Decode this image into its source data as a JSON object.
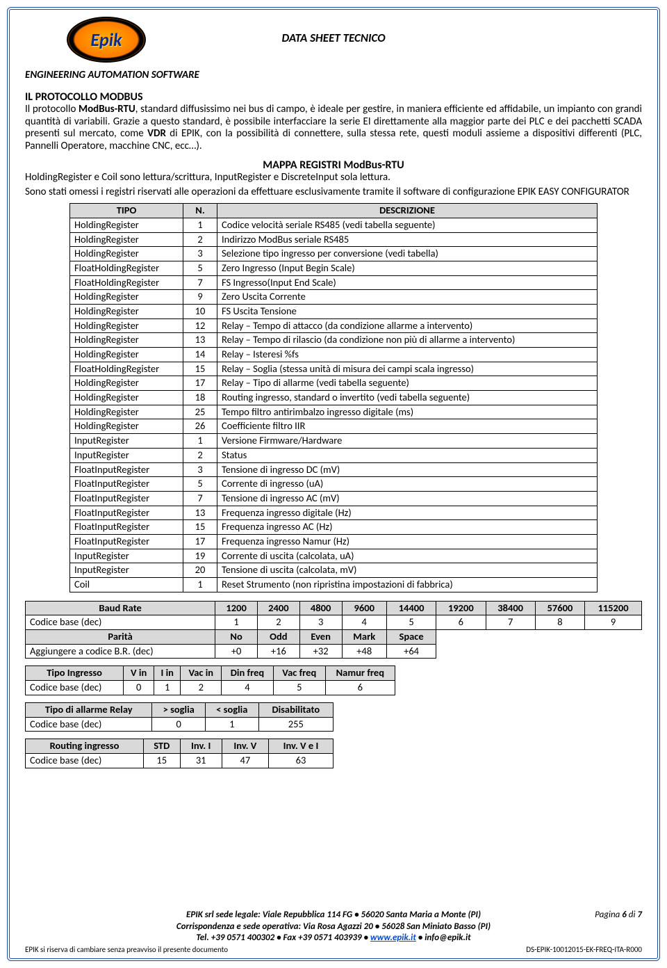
{
  "header": {
    "ds_title": "DATA SHEET TECNICO",
    "subtitle": "ENGINEERING AUTOMATION SOFTWARE",
    "logo_text": "Epik"
  },
  "section": {
    "title": "IL PROTOCOLLO MODBUS",
    "p1a": "Il protocollo ",
    "p1b": "ModBus-RTU",
    "p1c": ", standard diffusissimo nei bus di campo, è ideale per gestire, in maniera efficiente ed affidabile, un impianto con grandi quantità di variabili. Grazie a questo standard, è possibile interfacciare la serie EI direttamente alla maggior parte dei PLC e dei pacchetti SCADA presenti sul mercato, come ",
    "p1d": "VDR",
    "p1e": " di EPIK, con la possibilità di connettere, sulla stessa rete, questi moduli assieme a dispositivi differenti (PLC, Pannelli Operatore, macchine CNC, ecc…).",
    "map_title": "MAPPA REGISTRI ModBus-RTU",
    "p2": "HoldingRegister e Coil sono lettura/scrittura, InputRegister e DiscreteInput sola lettura.",
    "p3": "Sono stati omessi i registri riservati alle operazioni da effettuare esclusivamente tramite il software di configurazione EPIK EASY CONFIGURATOR"
  },
  "reg_table": {
    "headers": [
      "TIPO",
      "N.",
      "DESCRIZIONE"
    ],
    "rows": [
      [
        "HoldingRegister",
        "1",
        "Codice velocità seriale RS485 (vedi tabella seguente)"
      ],
      [
        "HoldingRegister",
        "2",
        "Indirizzo ModBus seriale RS485"
      ],
      [
        "HoldingRegister",
        "3",
        "Selezione tipo ingresso per conversione (vedi tabella)"
      ],
      [
        "FloatHoldingRegister",
        "5",
        "Zero Ingresso (Input Begin Scale)"
      ],
      [
        "FloatHoldingRegister",
        "7",
        "FS  Ingresso(Input End Scale)"
      ],
      [
        "HoldingRegister",
        "9",
        "Zero Uscita Corrente"
      ],
      [
        "HoldingRegister",
        "10",
        "FS Uscita Tensione"
      ],
      [
        "HoldingRegister",
        "12",
        "Relay – Tempo di attacco (da condizione allarme a intervento)"
      ],
      [
        "HoldingRegister",
        "13",
        "Relay – Tempo di rilascio (da condizione non più di allarme a intervento)"
      ],
      [
        "HoldingRegister",
        "14",
        "Relay – Isteresi %fs"
      ],
      [
        "FloatHoldingRegister",
        "15",
        "Relay – Soglia (stessa unità di misura dei campi scala ingresso)"
      ],
      [
        "HoldingRegister",
        "17",
        "Relay – Tipo di allarme (vedi tabella seguente)"
      ],
      [
        "HoldingRegister",
        "18",
        "Routing ingresso, standard o invertito (vedi tabella seguente)"
      ],
      [
        "HoldingRegister",
        "25",
        "Tempo filtro antirimbalzo ingresso digitale (ms)"
      ],
      [
        "HoldingRegister",
        "26",
        "Coefficiente filtro IIR"
      ],
      [
        "InputRegister",
        "1",
        "Versione Firmware/Hardware"
      ],
      [
        "InputRegister",
        "2",
        "Status"
      ],
      [
        "FloatInputRegister",
        "3",
        "Tensione di ingresso DC (mV)"
      ],
      [
        "FloatInputRegister",
        "5",
        "Corrente di ingresso (uA)"
      ],
      [
        "FloatInputRegister",
        "7",
        "Tensione di ingresso AC (mV)"
      ],
      [
        "FloatInputRegister",
        "13",
        "Frequenza ingresso digitale (Hz)"
      ],
      [
        "FloatInputRegister",
        "15",
        "Frequenza ingresso AC (Hz)"
      ],
      [
        "FloatInputRegister",
        "17",
        "Frequenza ingresso Namur (Hz)"
      ],
      [
        "InputRegister",
        "19",
        "Corrente di uscita (calcolata, uA)"
      ],
      [
        "InputRegister",
        "20",
        "Tensione di uscita (calcolata, mV)"
      ],
      [
        "Coil",
        "1",
        "Reset Strumento (non ripristina impostazioni di fabbrica)"
      ]
    ]
  },
  "baud_table": {
    "h": [
      "Baud Rate",
      "1200",
      "2400",
      "4800",
      "9600",
      "14400",
      "19200",
      "38400",
      "57600",
      "115200"
    ],
    "r1": [
      "Codice base (dec)",
      "1",
      "2",
      "3",
      "4",
      "5",
      "6",
      "7",
      "8",
      "9"
    ],
    "h2": [
      "Parità",
      "No",
      "Odd",
      "Even",
      "Mark",
      "Space"
    ],
    "r2": [
      "Aggiungere a codice B.R. (dec)",
      "+0",
      "+16",
      "+32",
      "+48",
      "+64"
    ]
  },
  "tipo_table": {
    "h": [
      "Tipo Ingresso",
      "V in",
      "I in",
      "Vac in",
      "Din freq",
      "Vac freq",
      "Namur freq"
    ],
    "r": [
      "Codice base (dec)",
      "0",
      "1",
      "2",
      "4",
      "5",
      "6"
    ]
  },
  "alarm_table": {
    "h": [
      "Tipo di allarme Relay",
      "> soglia",
      "< soglia",
      "Disabilitato"
    ],
    "r": [
      "Codice base (dec)",
      "0",
      "1",
      "255"
    ]
  },
  "route_table": {
    "h": [
      "Routing ingresso",
      "STD",
      "Inv. I",
      "Inv. V",
      "Inv. V e I"
    ],
    "r": [
      "Codice base (dec)",
      "15",
      "31",
      "47",
      "63"
    ]
  },
  "footer": {
    "l1": "EPIK srl sede legale: Viale Repubblica 114 FG • 56020 Santa Maria a Monte (PI)",
    "l2": "Corrispondenza e sede operativa: Via Rosa Agazzi 20 • 56028 San Miniato Basso (PI)",
    "l3a": "Tel. +39 0571 400302 • Fax +39 0571 403939 • ",
    "l3link": "www.epik.it",
    "l3b": " • info@epik.it",
    "page": "Pagina 6 di 7",
    "disclaimer": "EPIK si riserva di cambiare senza preavviso il presente documento",
    "doc_id": "DS-EPIK-10012015-EK-FREQ-ITA-R000"
  }
}
